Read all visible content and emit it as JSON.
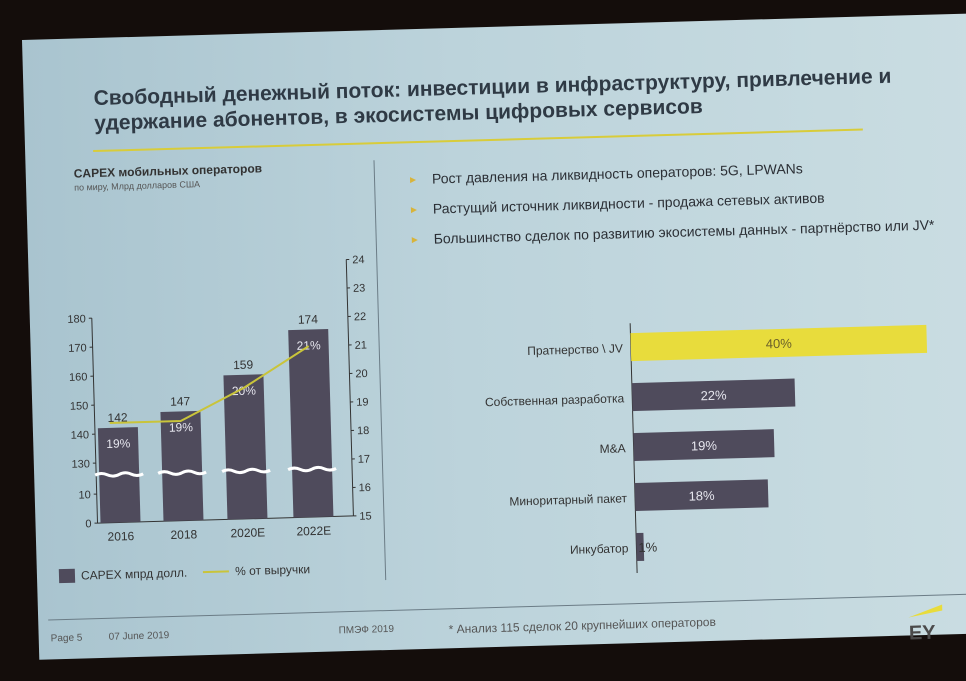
{
  "slide": {
    "title": "Свободный денежный поток: инвестиции в инфраструктуру, привлечение и удержание абонентов, в экосистемы цифровых сервисов",
    "bullets": [
      "Рост давления на ликвидность операторов: 5G, LPWANs",
      "Растущий источник ликвидности - продажа сетевых активов",
      "Большинство сделок по развитию экосистемы данных - партнёрство или JV*"
    ],
    "footer": {
      "page": "Page 5",
      "date": "07 June 2019",
      "event": "ПМЭФ 2019",
      "note": "* Анализ 115 сделок 20 крупнейших операторов",
      "logo": "EY"
    }
  },
  "colors": {
    "bar": "#4f4b5c",
    "accent": "#e8dc3c",
    "line": "#c9c43a"
  },
  "chart_data": [
    {
      "type": "bar",
      "title": "CAPEX мобильных операторов",
      "subtitle": "по миру, Млрд долларов США",
      "categories": [
        "2016",
        "2018",
        "2020E",
        "2022E"
      ],
      "values": [
        142,
        147,
        159,
        174
      ],
      "value_labels": [
        "142",
        "147",
        "159",
        "174"
      ],
      "line_series": {
        "name": "% от выручки",
        "values": [
          18.5,
          18.5,
          19.6,
          21
        ],
        "labels": [
          "19%",
          "19%",
          "20%",
          "21%"
        ]
      },
      "left_ticks": [
        "0",
        "10",
        "130",
        "140",
        "150",
        "160",
        "170",
        "180"
      ],
      "right_ticks": [
        "15",
        "16",
        "17",
        "18",
        "19",
        "20",
        "21",
        "22",
        "23",
        "24"
      ],
      "ylim": [
        0,
        180
      ],
      "y2lim": [
        15,
        24
      ],
      "axis_break": true,
      "legend": [
        "CAPEX  мпрд долл.",
        "% от выручки"
      ]
    },
    {
      "type": "bar",
      "orientation": "horizontal",
      "categories": [
        "Пратнерство \\ JV",
        "Собственная разработка",
        "M&A",
        "Миноритарный пакет",
        "Инкубатор"
      ],
      "values": [
        40,
        22,
        19,
        18,
        1
      ],
      "value_labels": [
        "40%",
        "22%",
        "19%",
        "18%",
        "1%"
      ]
    }
  ]
}
